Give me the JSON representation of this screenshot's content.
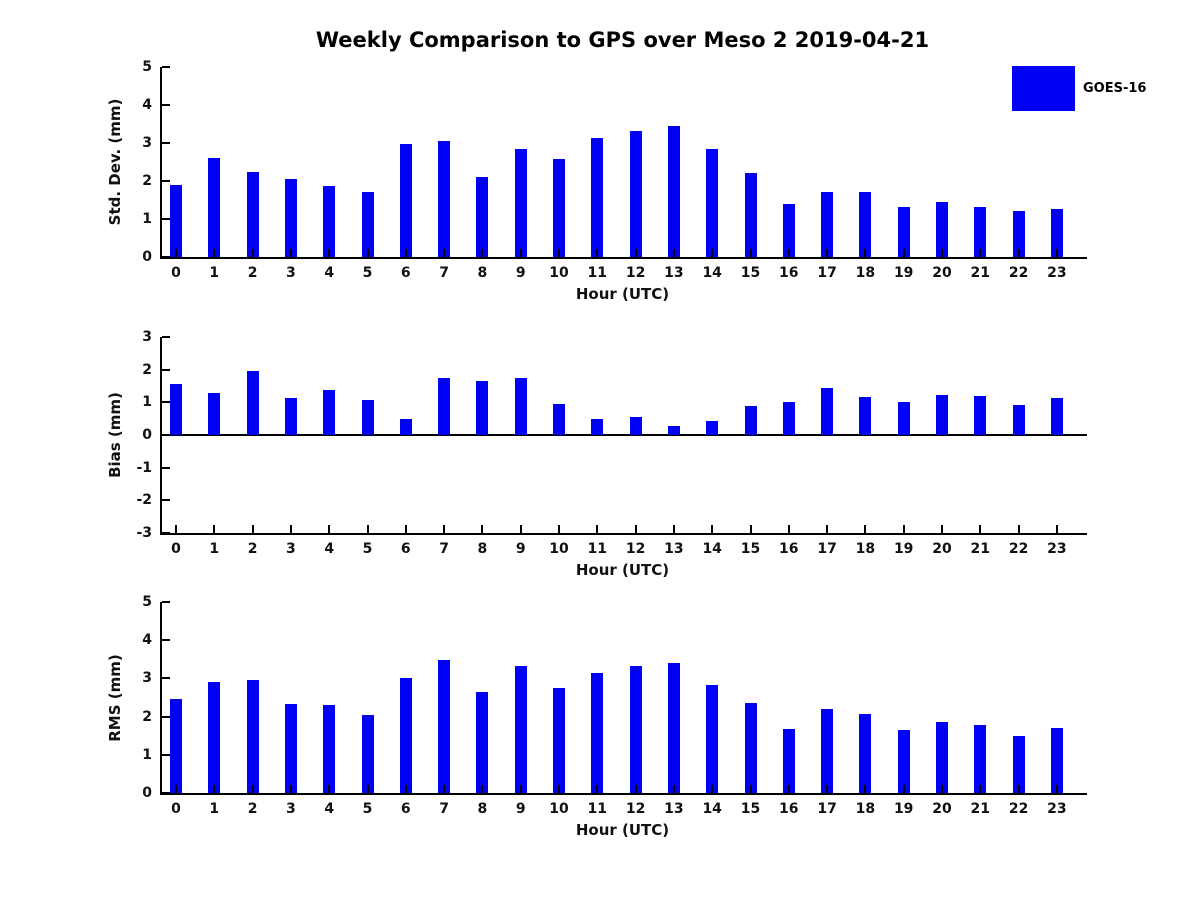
{
  "title": "Weekly Comparison to GPS over Meso 2 2019-04-21",
  "legend": {
    "label": "GOES-16"
  },
  "colors": {
    "bar": "#0000f5",
    "axis": "#000000",
    "text": "#111111",
    "background": "#ffffff"
  },
  "chart_data": [
    {
      "type": "bar",
      "panel": "std-dev",
      "title": "",
      "ylabel": "Std. Dev. (mm)",
      "xlabel": "Hour (UTC)",
      "ylim": [
        0,
        5
      ],
      "yticks": [
        0,
        1,
        2,
        3,
        4,
        5
      ],
      "grid": false,
      "legend_position": "upper-right-outside",
      "series": [
        {
          "name": "GOES-16",
          "values": [
            1.9,
            2.6,
            2.25,
            2.06,
            1.86,
            1.72,
            2.98,
            3.06,
            2.11,
            2.84,
            2.58,
            3.13,
            3.31,
            3.45,
            2.84,
            2.22,
            1.4,
            1.72,
            1.72,
            1.32,
            1.44,
            1.32,
            1.2,
            1.27
          ]
        }
      ],
      "categories": [
        "0",
        "1",
        "2",
        "3",
        "4",
        "5",
        "6",
        "7",
        "8",
        "9",
        "10",
        "11",
        "12",
        "13",
        "14",
        "15",
        "16",
        "17",
        "18",
        "19",
        "20",
        "21",
        "22",
        "23"
      ]
    },
    {
      "type": "bar",
      "panel": "bias",
      "title": "",
      "ylabel": "Bias (mm)",
      "xlabel": "Hour (UTC)",
      "ylim": [
        -3,
        3
      ],
      "yticks": [
        -3,
        -2,
        -1,
        0,
        1,
        2,
        3
      ],
      "grid": false,
      "series": [
        {
          "name": "GOES-16",
          "values": [
            1.57,
            1.3,
            1.95,
            1.14,
            1.37,
            1.07,
            0.49,
            1.73,
            1.64,
            1.76,
            0.96,
            0.49,
            0.55,
            0.29,
            0.43,
            0.88,
            1.0,
            1.44,
            1.16,
            1.01,
            1.23,
            1.19,
            0.91,
            1.14
          ]
        }
      ],
      "categories": [
        "0",
        "1",
        "2",
        "3",
        "4",
        "5",
        "6",
        "7",
        "8",
        "9",
        "10",
        "11",
        "12",
        "13",
        "14",
        "15",
        "16",
        "17",
        "18",
        "19",
        "20",
        "21",
        "22",
        "23"
      ]
    },
    {
      "type": "bar",
      "panel": "rms",
      "title": "",
      "ylabel": "RMS (mm)",
      "xlabel": "Hour (UTC)",
      "ylim": [
        0,
        5
      ],
      "yticks": [
        0,
        1,
        2,
        3,
        4,
        5
      ],
      "grid": false,
      "series": [
        {
          "name": "GOES-16",
          "values": [
            2.46,
            2.9,
            2.95,
            2.33,
            2.31,
            2.03,
            3.0,
            3.47,
            2.64,
            3.32,
            2.74,
            3.13,
            3.32,
            3.4,
            2.84,
            2.35,
            1.67,
            2.21,
            2.06,
            1.66,
            1.87,
            1.77,
            1.5,
            1.69
          ]
        }
      ],
      "categories": [
        "0",
        "1",
        "2",
        "3",
        "4",
        "5",
        "6",
        "7",
        "8",
        "9",
        "10",
        "11",
        "12",
        "13",
        "14",
        "15",
        "16",
        "17",
        "18",
        "19",
        "20",
        "21",
        "22",
        "23"
      ]
    }
  ]
}
